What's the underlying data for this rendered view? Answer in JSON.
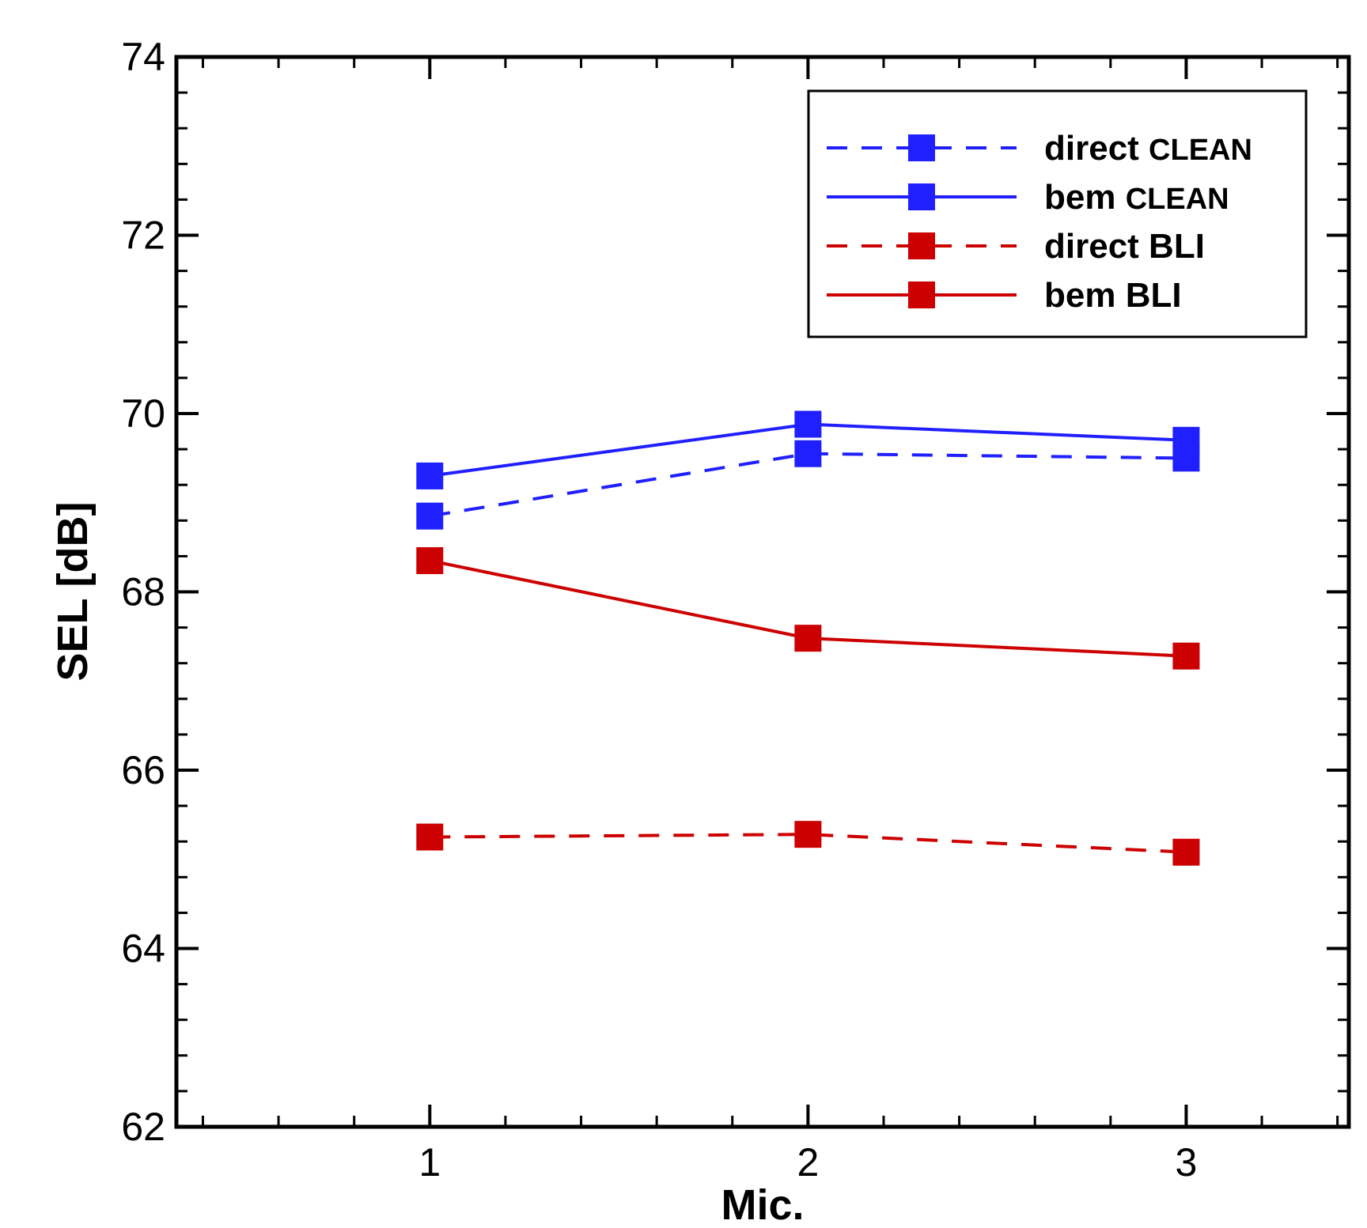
{
  "chart_data": {
    "type": "line",
    "title": "",
    "xlabel": "Mic.",
    "ylabel": "SEL [dB]",
    "xlim": [
      0.33,
      3.43
    ],
    "ylim": [
      62,
      74
    ],
    "x_ticks": [
      1,
      2,
      3
    ],
    "y_ticks": [
      62,
      64,
      66,
      68,
      70,
      72,
      74
    ],
    "x_minor_step": 0.2,
    "y_minor_step": 0.4,
    "grid": false,
    "legend_position": "top-right",
    "x": [
      1,
      2,
      3
    ],
    "series": [
      {
        "name": "direct CLEAN",
        "name_parts": [
          "direct",
          "CLEAN"
        ],
        "color": "#2020ff",
        "dashed": true,
        "marker": "square",
        "values": [
          68.85,
          69.55,
          69.5
        ]
      },
      {
        "name": "bem CLEAN",
        "name_parts": [
          "bem",
          "CLEAN"
        ],
        "color": "#2020ff",
        "dashed": false,
        "marker": "square",
        "values": [
          69.3,
          69.88,
          69.7
        ]
      },
      {
        "name": "direct BLI",
        "name_parts": [
          "direct",
          "BLI"
        ],
        "color": "#cc0000",
        "dashed": true,
        "marker": "square",
        "values": [
          65.25,
          65.28,
          65.08
        ]
      },
      {
        "name": "bem BLI",
        "name_parts": [
          "bem",
          "BLI"
        ],
        "color": "#cc0000",
        "dashed": false,
        "marker": "square",
        "values": [
          68.35,
          67.48,
          67.28
        ]
      }
    ]
  }
}
